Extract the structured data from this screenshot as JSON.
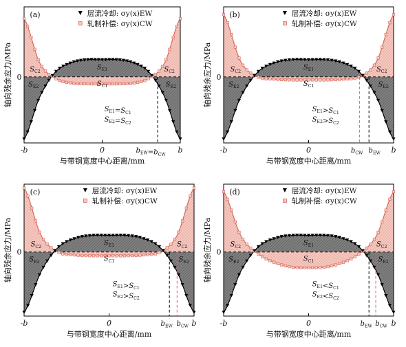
{
  "figure": {
    "ylabel": "轴向残余应力/MPa",
    "xlabel": "与带钢宽度中心距离/mm",
    "legend": {
      "ew": {
        "label": "层流冷却: σy(x)EW",
        "marker": "triangle-down",
        "color": "#000000"
      },
      "cw": {
        "label": "轧制补偿: σy(x)CW",
        "marker": "square",
        "color": "#d9665a"
      }
    },
    "colors": {
      "ew_line": "#000000",
      "cw_line": "#d9665a",
      "ew_fill": "#7f7f7f",
      "cw_fill": "#f4c9c1"
    }
  },
  "chart_data": [
    {
      "type": "line",
      "panel": "(a)",
      "x_ticks": [
        "-b",
        "0",
        "b"
      ],
      "y_ticks": [
        "0"
      ],
      "series": [
        {
          "name": "层流冷却: σy(x)EW",
          "x": [
            -1.0,
            -0.8,
            -0.6,
            -0.4,
            -0.2,
            0.0,
            0.2,
            0.4,
            0.6,
            0.8,
            1.0
          ],
          "y": [
            -0.8,
            -0.26,
            0.06,
            0.18,
            0.22,
            0.22,
            0.22,
            0.18,
            0.06,
            -0.26,
            -0.8
          ]
        },
        {
          "name": "轧制补偿: σy(x)CW",
          "x": [
            -1.0,
            -0.8,
            -0.6,
            -0.4,
            -0.2,
            0.0,
            0.2,
            0.4,
            0.6,
            0.8,
            1.0
          ],
          "y": [
            0.75,
            0.18,
            -0.02,
            -0.08,
            -0.09,
            -0.09,
            -0.09,
            -0.08,
            -0.02,
            0.18,
            0.75
          ]
        }
      ],
      "region_labels": [
        "SE1",
        "SC1",
        "SC2",
        "SE2",
        "SC2",
        "SE2"
      ],
      "equations": [
        "SE1=SC1",
        "SE2=SC2"
      ],
      "markers": [
        {
          "label": "bEW=bCW",
          "x": 0.71
        }
      ]
    },
    {
      "type": "line",
      "panel": "(b)",
      "x_ticks": [
        "-b",
        "0",
        "b"
      ],
      "y_ticks": [
        "0"
      ],
      "series": [
        {
          "name": "层流冷却: σy(x)EW",
          "x": [
            -1.0,
            -0.8,
            -0.6,
            -0.4,
            -0.2,
            0.0,
            0.2,
            0.4,
            0.6,
            0.8,
            1.0
          ],
          "y": [
            -0.8,
            -0.26,
            0.06,
            0.18,
            0.22,
            0.22,
            0.22,
            0.18,
            0.06,
            -0.26,
            -0.8
          ]
        },
        {
          "name": "轧制补偿: σy(x)CW",
          "x": [
            -1.0,
            -0.8,
            -0.6,
            -0.4,
            -0.2,
            0.0,
            0.2,
            0.4,
            0.6,
            0.8,
            1.0
          ],
          "y": [
            0.8,
            0.2,
            0.0,
            -0.03,
            -0.04,
            -0.04,
            -0.04,
            -0.03,
            0.0,
            0.2,
            0.8
          ]
        }
      ],
      "region_labels": [
        "SE1",
        "SC1",
        "SC2",
        "SE2",
        "SC2",
        "SE2"
      ],
      "equations": [
        "SE1>SC1",
        "SE2>SC2"
      ],
      "markers": [
        {
          "label": "bEW",
          "x": 0.71
        },
        {
          "label": "bCW",
          "x": 0.6
        }
      ]
    },
    {
      "type": "line",
      "panel": "(c)",
      "x_ticks": [
        "-b",
        "0",
        "b"
      ],
      "y_ticks": [
        "0"
      ],
      "series": [
        {
          "name": "层流冷却: σy(x)EW",
          "x": [
            -1.0,
            -0.8,
            -0.6,
            -0.4,
            -0.2,
            0.0,
            0.2,
            0.4,
            0.6,
            0.8,
            1.0
          ],
          "y": [
            -0.8,
            -0.26,
            0.06,
            0.18,
            0.22,
            0.22,
            0.22,
            0.18,
            0.06,
            -0.26,
            -0.8
          ]
        },
        {
          "name": "轧制补偿: σy(x)CW",
          "x": [
            -1.0,
            -0.8,
            -0.6,
            -0.4,
            -0.2,
            0.0,
            0.2,
            0.4,
            0.6,
            0.8,
            1.0
          ],
          "y": [
            0.85,
            0.22,
            0.0,
            -0.04,
            -0.05,
            -0.05,
            -0.05,
            -0.04,
            0.0,
            0.22,
            0.85
          ]
        }
      ],
      "region_labels": [
        "SE1",
        "SC1",
        "SC2",
        "SE2",
        "SC2",
        "SE2"
      ],
      "equations": [
        "SE1>SC1",
        "SE2>SC2"
      ],
      "markers": [
        {
          "label": "bEW",
          "x": 0.71
        },
        {
          "label": "bCW",
          "x": 0.8
        }
      ]
    },
    {
      "type": "line",
      "panel": "(d)",
      "x_ticks": [
        "-b",
        "0",
        "b"
      ],
      "y_ticks": [
        "0"
      ],
      "series": [
        {
          "name": "层流冷却: σy(x)EW",
          "x": [
            -1.0,
            -0.8,
            -0.6,
            -0.4,
            -0.2,
            0.0,
            0.2,
            0.4,
            0.6,
            0.8,
            1.0
          ],
          "y": [
            -0.8,
            -0.26,
            0.06,
            0.18,
            0.22,
            0.22,
            0.22,
            0.18,
            0.06,
            -0.26,
            -0.8
          ]
        },
        {
          "name": "轧制补偿: σy(x)CW",
          "x": [
            -1.0,
            -0.8,
            -0.6,
            -0.4,
            -0.2,
            0.0,
            0.2,
            0.4,
            0.6,
            0.8,
            1.0
          ],
          "y": [
            0.8,
            0.22,
            -0.02,
            -0.14,
            -0.2,
            -0.21,
            -0.2,
            -0.14,
            -0.02,
            0.22,
            0.8
          ]
        }
      ],
      "region_labels": [
        "SE1",
        "SC1",
        "SC2",
        "SE2",
        "SC2",
        "SE2"
      ],
      "equations": [
        "SE1<SC1",
        "SE2<SC2"
      ],
      "markers": [
        {
          "label": "bEW",
          "x": 0.71
        },
        {
          "label": "bCW",
          "x": 0.79
        }
      ]
    }
  ]
}
